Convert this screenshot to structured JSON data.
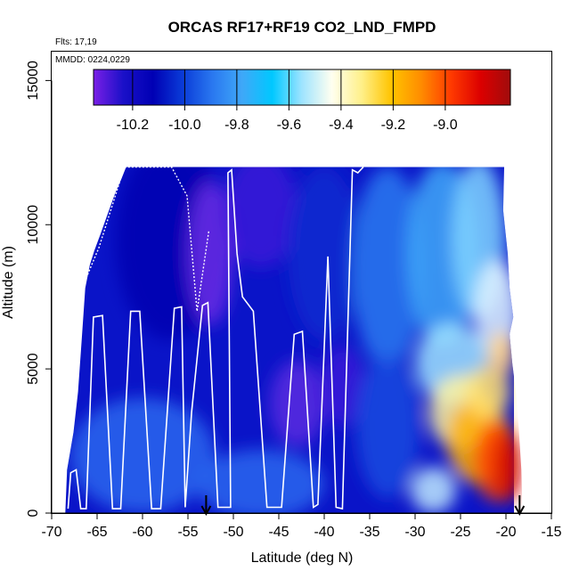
{
  "chart_data": {
    "type": "heatmap",
    "title": "ORCAS RF17+RF19 CO2_LND_FMPD",
    "annotations": {
      "flights": "Flts: 17,19",
      "dates": "MMDD: 0224,0229"
    },
    "xlabel": "Latitude (deg N)",
    "ylabel": "Altitude (m)",
    "xlim": [
      -70,
      -15
    ],
    "ylim": [
      0,
      16000
    ],
    "xticks": [
      -70,
      -65,
      -60,
      -55,
      -50,
      -45,
      -40,
      -35,
      -30,
      -25,
      -20,
      -15
    ],
    "xtick_labels": [
      "-70",
      "-65",
      "-60",
      "-55",
      "-50",
      "-45",
      "-40",
      "-35",
      "-30",
      "-25",
      "-20",
      "-15"
    ],
    "yticks": [
      0,
      5000,
      10000,
      15000
    ],
    "ytick_labels": [
      "0",
      "5000",
      "10000",
      "15000"
    ],
    "colorbar": {
      "range": [
        -10.35,
        -8.75
      ],
      "ticks": [
        -10.2,
        -10.0,
        -9.8,
        -9.6,
        -9.4,
        -9.2,
        -9.0
      ],
      "tick_labels": [
        "-10.2",
        "-10.0",
        "-9.8",
        "-9.6",
        "-9.4",
        "-9.2",
        "-9.0"
      ],
      "colors": [
        "#7a1fe6",
        "#1a10c8",
        "#0000b4",
        "#0a3cd8",
        "#2a78f0",
        "#3fa8f8",
        "#00c8ff",
        "#9fe4ff",
        "#fffff0",
        "#fff08a",
        "#ffc400",
        "#ff8c00",
        "#ff3a00",
        "#dc0000",
        "#a00c0c"
      ]
    },
    "data_extent": {
      "lat_min": -68.5,
      "lat_max": -18.5,
      "alt_min": 0,
      "alt_max": 12000
    },
    "field_summary": "CO2_LND_FMPD curtain along flight track; mostly -10.2 to -9.9 south of -35 with purple minima near -10.3 around -53 (8-10 km) and -42 (3-4 km); values rise toward -9.6 to -9.4 north of -30 aloft and peak near -9.0 below 3 km around -20.",
    "flight_track": {
      "lat": [
        -68.2,
        -67.9,
        -67.3,
        -66.8,
        -66.2,
        -65.4,
        -64.4,
        -63.3,
        -62.4,
        -61.3,
        -60.3,
        -59.0,
        -58.0,
        -56.5,
        -55.7,
        -55.3,
        -54.6,
        -53.4,
        -52.8,
        -51.7,
        -50.3,
        -50.6,
        -50.2,
        -49.6,
        -49.0,
        -47.8,
        -46.3,
        -44.7,
        -43.3,
        -42.4,
        -41.2,
        -40.7,
        -39.6,
        -38.7,
        -38.0,
        -36.9,
        -36.3,
        -35.7
      ],
      "alt": [
        150,
        1400,
        1500,
        150,
        150,
        6800,
        6850,
        150,
        150,
        7000,
        7000,
        150,
        150,
        7100,
        7150,
        200,
        3500,
        7200,
        7300,
        200,
        200,
        11800,
        11900,
        9000,
        7500,
        7000,
        200,
        200,
        6200,
        6300,
        200,
        300,
        8900,
        200,
        150,
        11900,
        11800,
        12000
      ]
    },
    "flight_track_2": {
      "lat": [
        -66.8,
        -64.8,
        -62.0,
        -59.8,
        -56.8,
        -55.1,
        -54.0,
        -52.7
      ],
      "alt": [
        7700,
        9200,
        12000,
        12000,
        12000,
        11000,
        7000,
        9800
      ]
    },
    "arrows_at_latitude": [
      -53.0,
      -18.5
    ]
  }
}
